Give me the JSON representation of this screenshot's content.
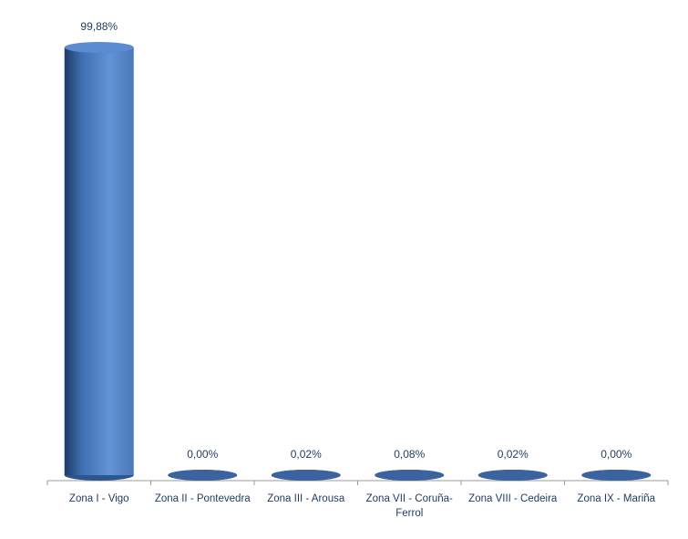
{
  "chart_data": {
    "type": "bar",
    "style": "cylinder",
    "categories": [
      "Zona I - Vigo",
      "Zona II - Pontevedra",
      "Zona III - Arousa",
      "Zona VII - Coruña-Ferrol",
      "Zona VIII - Cedeira",
      "Zona IX - Mariña"
    ],
    "values": [
      99.88,
      0,
      0.02,
      0.08,
      0.02,
      0
    ],
    "value_labels": [
      "99,88%",
      "0,00%",
      "0,02%",
      "0,08%",
      "0,02%",
      "0,00%"
    ],
    "color": "#4f81bd"
  }
}
